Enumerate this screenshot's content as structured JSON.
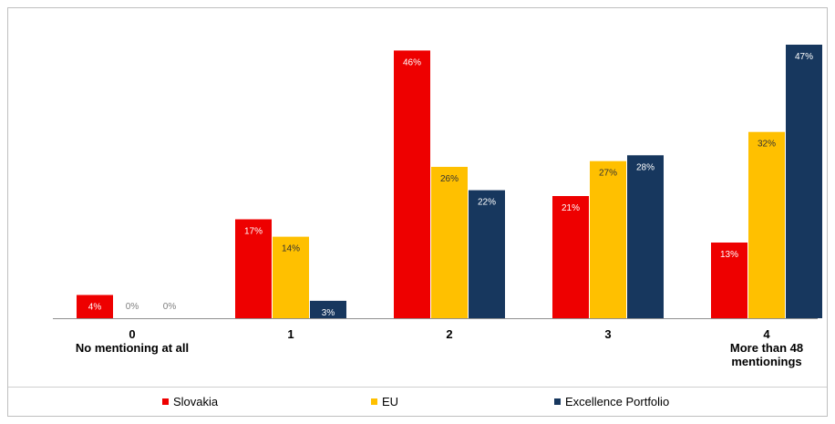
{
  "chart_data": {
    "type": "bar",
    "categories": [
      [
        "0",
        "No mentioning at all"
      ],
      [
        "1"
      ],
      [
        "2"
      ],
      [
        "3"
      ],
      [
        "4",
        "More than 48",
        "mentionings"
      ]
    ],
    "series": [
      {
        "name": "Slovakia",
        "color": "#ee0000",
        "values": [
          4,
          17,
          46,
          21,
          13
        ],
        "labels": [
          "4%",
          "17%",
          "46%",
          "21%",
          "13%"
        ],
        "label_color": "#ffffff"
      },
      {
        "name": "EU",
        "color": "#ffc000",
        "values": [
          0,
          14,
          26,
          27,
          32
        ],
        "labels": [
          "0%",
          "14%",
          "26%",
          "27%",
          "32%"
        ],
        "label_color": "#333333"
      },
      {
        "name": "Excellence Portfolio",
        "color": "#17375e",
        "values": [
          0,
          3,
          22,
          28,
          47
        ],
        "labels": [
          "0%",
          "3%",
          "22%",
          "28%",
          "47%"
        ],
        "label_color": "#ffffff"
      }
    ],
    "ylim": [
      0,
      47
    ],
    "legend_position": "bottom",
    "grid": false
  }
}
